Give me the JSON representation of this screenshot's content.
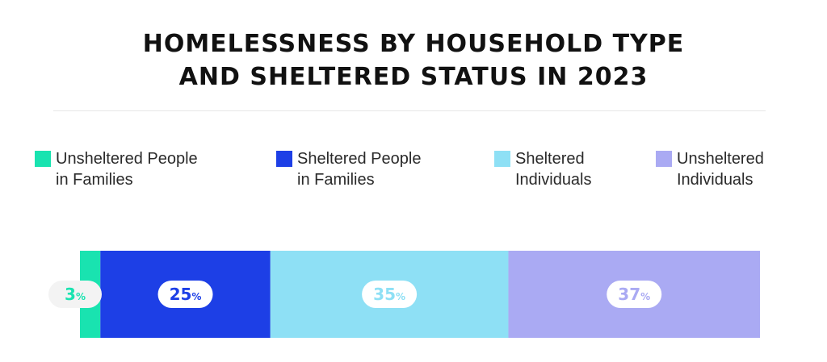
{
  "chart_data": {
    "type": "bar",
    "orientation": "horizontal",
    "stacked": true,
    "title_lines": [
      "HOMELESSNESS BY HOUSEHOLD TYPE",
      "AND SHELTERED STATUS IN 2023"
    ],
    "legend": "top",
    "series": [
      {
        "name": "Unsheltered People\nin Families",
        "value": 3,
        "label": "3",
        "color": "#19e3b0"
      },
      {
        "name": "Sheltered People\nin Families",
        "value": 25,
        "label": "25",
        "color": "#1d3fe6"
      },
      {
        "name": "Sheltered\nIndividuals",
        "value": 35,
        "label": "35",
        "color": "#8ee0f5"
      },
      {
        "name": "Unsheltered\nIndividuals",
        "value": 37,
        "label": "37",
        "color": "#aaaaf3"
      }
    ],
    "unit_suffix": "%"
  }
}
